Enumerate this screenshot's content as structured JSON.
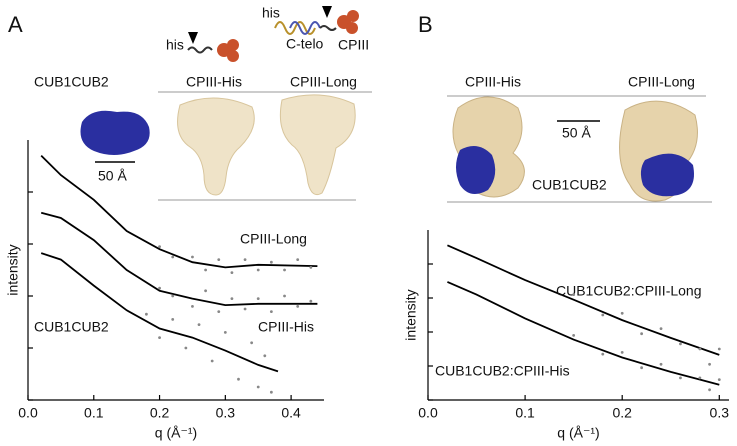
{
  "panels": [
    {
      "label": "A",
      "texts": [
        "his",
        "his",
        "C-telo",
        "CPIII",
        "CUB1CUB2",
        "CPIII-His",
        "CPIII-Long",
        "50 Å"
      ]
    },
    {
      "label": "B",
      "texts": [
        "CPIII-His",
        "CPIII-Long",
        "50 Å",
        "CUB1CUB2"
      ]
    }
  ],
  "chart_data": [
    {
      "type": "line",
      "xlabel": "q (Å⁻¹)",
      "ylabel": "intensity",
      "xlim": [
        0,
        0.45
      ],
      "ylim": [
        0,
        10
      ],
      "xticks": [
        {
          "value": 0,
          "label": "0.0"
        },
        0.1,
        0.2,
        0.3,
        0.4
      ],
      "yticks": [
        0,
        2,
        4,
        6,
        8
      ],
      "series": [
        {
          "name": "CPIII-Long",
          "color": "#000000",
          "mode": "lines",
          "x": [
            0.02,
            0.05,
            0.1,
            0.15,
            0.2,
            0.25,
            0.3,
            0.35,
            0.44
          ],
          "values": [
            9.4,
            8.65,
            7.7,
            6.5,
            5.8,
            5.3,
            5.1,
            5.2,
            5.15
          ]
        },
        {
          "name": "CPIII-His",
          "color": "#000000",
          "mode": "lines",
          "x": [
            0.02,
            0.05,
            0.1,
            0.15,
            0.2,
            0.25,
            0.3,
            0.35,
            0.44
          ],
          "values": [
            7.2,
            7.0,
            6.15,
            5.0,
            4.2,
            3.9,
            3.65,
            3.7,
            3.7
          ]
        },
        {
          "name": "CUB1CUB2",
          "color": "#000000",
          "mode": "lines",
          "x": [
            0.02,
            0.05,
            0.1,
            0.15,
            0.2,
            0.25,
            0.3,
            0.35,
            0.38
          ],
          "values": [
            5.65,
            5.4,
            4.4,
            3.45,
            2.75,
            2.4,
            1.9,
            1.35,
            1.1
          ]
        },
        {
          "color": "#888888",
          "mode": "markers",
          "x": [
            0.2,
            0.22,
            0.25,
            0.27,
            0.29,
            0.31,
            0.33,
            0.35,
            0.37,
            0.39,
            0.41,
            0.43
          ],
          "values": [
            5.9,
            5.5,
            5.5,
            5.0,
            5.4,
            4.9,
            5.4,
            5.0,
            5.3,
            5.0,
            5.4,
            5.1
          ]
        },
        {
          "color": "#888888",
          "mode": "markers",
          "x": [
            0.2,
            0.22,
            0.25,
            0.27,
            0.29,
            0.31,
            0.33,
            0.35,
            0.37,
            0.39,
            0.41,
            0.43
          ],
          "values": [
            4.3,
            4.0,
            3.6,
            4.2,
            3.4,
            3.9,
            3.5,
            3.9,
            3.4,
            4.0,
            3.6,
            3.8
          ]
        },
        {
          "color": "#888888",
          "mode": "markers",
          "x": [
            0.18,
            0.2,
            0.22,
            0.24,
            0.26,
            0.28,
            0.3,
            0.32,
            0.34,
            0.35,
            0.36,
            0.37
          ],
          "values": [
            3.3,
            2.4,
            3.1,
            2.0,
            2.9,
            1.5,
            2.6,
            0.8,
            2.2,
            0.5,
            1.7,
            0.3
          ]
        }
      ]
    },
    {
      "type": "line",
      "xlabel": "q (Å⁻¹)",
      "ylabel": "intensity",
      "xlim": [
        0,
        0.31
      ],
      "ylim": [
        0,
        10
      ],
      "xticks": [
        {
          "value": 0,
          "label": "0.0"
        },
        0.1,
        0.2,
        0.3
      ],
      "yticks": [
        0,
        2,
        4,
        6,
        8
      ],
      "series": [
        {
          "name": "CUB1CUB2:CPIII-Long",
          "color": "#000000",
          "mode": "lines",
          "x": [
            0.02,
            0.05,
            0.1,
            0.15,
            0.2,
            0.25,
            0.3
          ],
          "values": [
            9.1,
            8.35,
            7.05,
            5.9,
            4.7,
            3.65,
            2.65
          ]
        },
        {
          "name": "CUB1CUB2:CPIII-His",
          "color": "#000000",
          "mode": "lines",
          "x": [
            0.02,
            0.05,
            0.1,
            0.15,
            0.2,
            0.25,
            0.3
          ],
          "values": [
            6.95,
            6.2,
            4.8,
            3.55,
            2.5,
            1.65,
            0.9
          ]
        },
        {
          "color": "#888888",
          "mode": "markers",
          "x": [
            0.15,
            0.18,
            0.2,
            0.22,
            0.24,
            0.26,
            0.28,
            0.29,
            0.3
          ],
          "values": [
            6.2,
            5.0,
            5.1,
            3.9,
            4.2,
            3.3,
            3.0,
            2.1,
            3.0
          ]
        },
        {
          "color": "#888888",
          "mode": "markers",
          "x": [
            0.15,
            0.18,
            0.2,
            0.22,
            0.24,
            0.26,
            0.28,
            0.29,
            0.3
          ],
          "values": [
            3.8,
            2.7,
            2.8,
            1.9,
            2.1,
            1.3,
            1.3,
            0.6,
            1.2
          ]
        }
      ]
    }
  ]
}
